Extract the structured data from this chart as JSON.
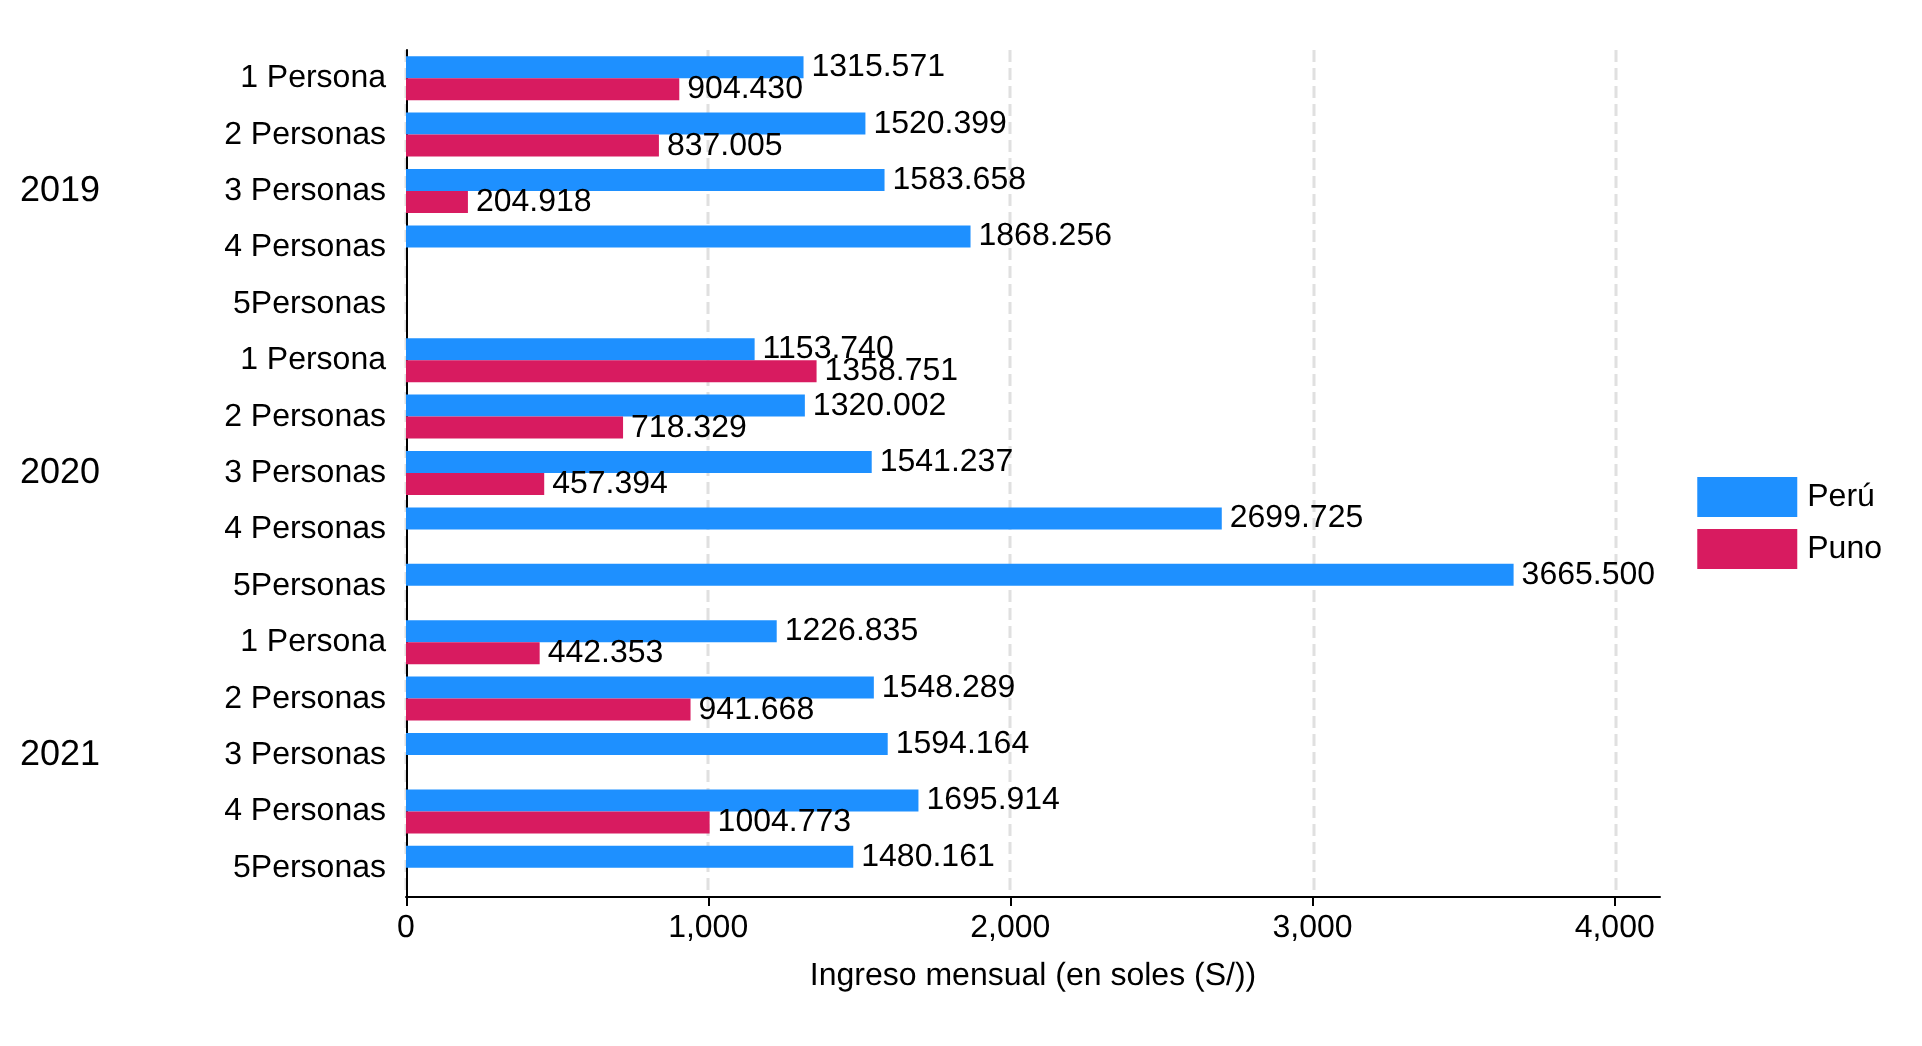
{
  "chart_data": {
    "type": "bar",
    "orientation": "horizontal",
    "xlabel": "Ingreso mensual (en soles (S/))",
    "categories": [
      "1 Persona",
      "2 Personas",
      "3 Personas",
      "4 Personas",
      "5Personas",
      "1 Persona",
      "2 Personas",
      "3 Personas",
      "4 Personas",
      "5Personas",
      "1 Persona",
      "2 Personas",
      "3 Personas",
      "4 Personas",
      "5Personas"
    ],
    "annotations": [
      "2019",
      "2020",
      "2021"
    ],
    "series": [
      {
        "name": "Perú",
        "color": "#1e90ff",
        "values": [
          1315.571,
          1520.399,
          1583.658,
          1868.256,
          null,
          1153.74,
          1320.002,
          1541.237,
          2699.725,
          3665.5,
          1226.835,
          1548.289,
          1594.164,
          1695.914,
          1480.161
        ],
        "value_labels": [
          "1315.571",
          "1520.399",
          "1583.658",
          "1868.256",
          null,
          "1153.740",
          "1320.002",
          "1541.237",
          "2699.725",
          "3665.500",
          "1226.835",
          "1548.289",
          "1594.164",
          "1695.914",
          "1480.161"
        ]
      },
      {
        "name": "Puno",
        "color": "#d81b60",
        "values": [
          904.43,
          837.005,
          204.918,
          null,
          null,
          1358.751,
          718.329,
          457.394,
          null,
          null,
          442.353,
          941.668,
          null,
          1004.773,
          null
        ],
        "value_labels": [
          "904.430",
          "837.005",
          "204.918",
          null,
          null,
          "1358.751",
          "718.329",
          "457.394",
          null,
          null,
          "442.353",
          "941.668",
          null,
          "1004.773",
          null
        ]
      }
    ],
    "xlim": [
      0,
      4150
    ],
    "xticks": [
      0,
      {
        "value": 1000,
        "label": "1,000"
      },
      {
        "value": 2000,
        "label": "2,000"
      },
      {
        "value": 3000,
        "label": "3,000"
      },
      {
        "value": 4000,
        "label": "4,000"
      }
    ],
    "grid": "x",
    "legend": "right"
  }
}
